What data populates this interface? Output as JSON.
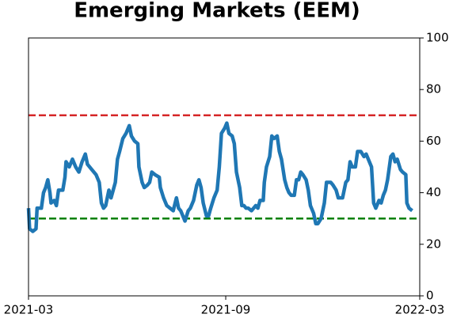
{
  "chart_data": {
    "type": "line",
    "title": "Emerging Markets (EEM)",
    "x": [
      0,
      1,
      4,
      7,
      8,
      12,
      14,
      16,
      18,
      20,
      21,
      24,
      26,
      28,
      32,
      34,
      35,
      38,
      41,
      44,
      47,
      50,
      53,
      55,
      59,
      63,
      66,
      68,
      70,
      72,
      75,
      77,
      79,
      81,
      83,
      85,
      88,
      91,
      94,
      96,
      99,
      102,
      103,
      106,
      108,
      111,
      113,
      115,
      118,
      122,
      123,
      126,
      129,
      132,
      135,
      138,
      140,
      142,
      144,
      146,
      149,
      151,
      154,
      157,
      159,
      161,
      163,
      166,
      168,
      170,
      173,
      176,
      178,
      180,
      183,
      185,
      187,
      190,
      192,
      194,
      197,
      199,
      201,
      203,
      205,
      208,
      210,
      212,
      214,
      216,
      219,
      220,
      222,
      225,
      227,
      229,
      232,
      234,
      236,
      239,
      241,
      243,
      245,
      248,
      250,
      252,
      254,
      256,
      259,
      261,
      263,
      266,
      268,
      270,
      273,
      276,
      278,
      280,
      282,
      284,
      287,
      289,
      291,
      293,
      296,
      298,
      300,
      302,
      305,
      307,
      310,
      313,
      315,
      318,
      320,
      322,
      324,
      327,
      329,
      331,
      333,
      335,
      338,
      340,
      342,
      344,
      347,
      349,
      352,
      353,
      355,
      358
    ],
    "series": [
      {
        "name": "EEM",
        "color": "#1f77b4",
        "values": [
          34,
          26,
          25,
          26,
          34,
          34,
          40,
          42,
          45,
          40,
          36,
          37,
          35,
          41,
          41,
          46,
          52,
          50,
          53,
          50,
          48,
          52,
          55,
          51,
          49,
          47,
          44,
          36,
          34,
          35,
          41,
          38,
          41,
          44,
          53,
          56,
          61,
          63,
          66,
          62,
          60,
          59,
          50,
          44,
          42,
          43,
          44,
          48,
          47,
          46,
          42,
          38,
          35,
          34,
          33,
          38,
          34,
          33,
          31,
          29,
          33,
          34,
          37,
          43,
          45,
          42,
          36,
          31,
          31,
          34,
          38,
          41,
          50,
          63,
          65,
          67,
          63,
          62,
          59,
          48,
          42,
          35,
          35,
          34,
          34,
          33,
          34,
          35,
          34,
          37,
          37,
          44,
          50,
          54,
          62,
          61,
          62,
          56,
          53,
          45,
          42,
          40,
          39,
          39,
          45,
          45,
          48,
          47,
          45,
          41,
          35,
          32,
          28,
          28,
          30,
          36,
          44,
          44,
          44,
          43,
          41,
          38,
          38,
          38,
          44,
          45,
          52,
          50,
          50,
          56,
          56,
          54,
          55,
          52,
          50,
          36,
          34,
          37,
          36,
          39,
          41,
          45,
          54,
          55,
          52,
          53,
          49,
          48,
          47,
          36,
          34,
          33
        ]
      }
    ],
    "xlim": [
      0,
      365
    ],
    "xticks": [
      {
        "value": 0,
        "label": "2021-03"
      },
      {
        "value": 184,
        "label": "2021-09"
      },
      {
        "value": 365,
        "label": "2022-03"
      }
    ],
    "ylim": [
      0,
      100
    ],
    "yticks": [
      0,
      20,
      40,
      60,
      80,
      100
    ],
    "y_axis_side": "right",
    "hlines": [
      {
        "value": 70,
        "color": "#d62728"
      },
      {
        "value": 30,
        "color": "#008000"
      }
    ]
  }
}
